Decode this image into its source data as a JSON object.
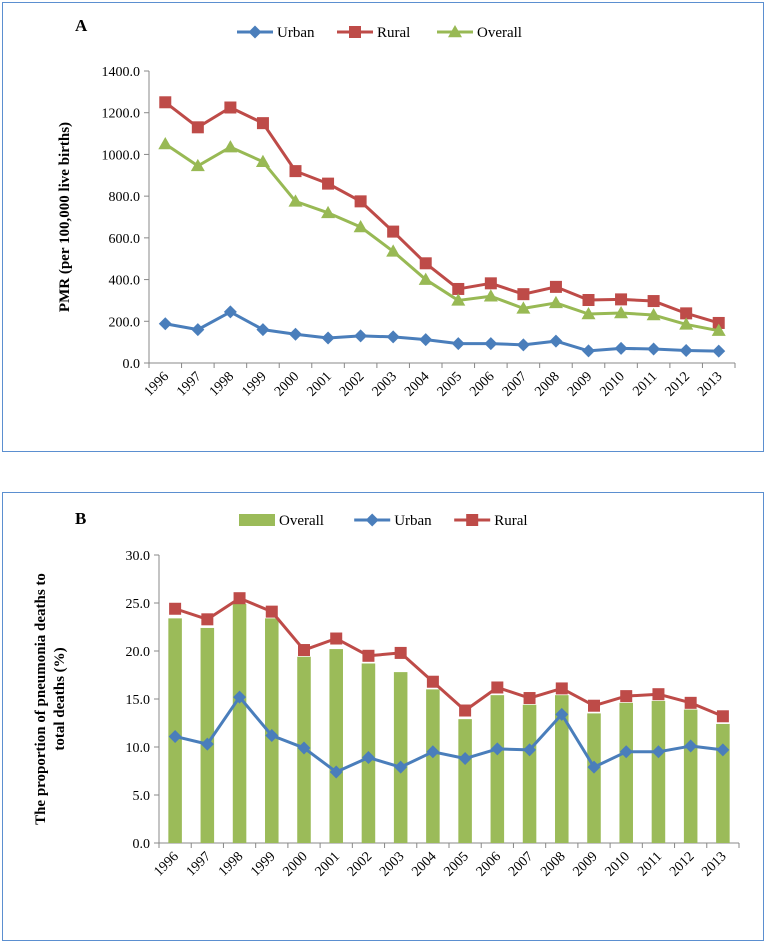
{
  "chart_data": [
    {
      "type": "line",
      "panel_label": "A",
      "ylabel": "PMR (per 100,000 live births)",
      "xlabel": "",
      "ylim": [
        0,
        1400
      ],
      "yticks": [
        "0.0",
        "200.0",
        "400.0",
        "600.0",
        "800.0",
        "1000.0",
        "1200.0",
        "1400.0"
      ],
      "categories": [
        "1996",
        "1997",
        "1998",
        "1999",
        "2000",
        "2001",
        "2002",
        "2003",
        "2004",
        "2005",
        "2006",
        "2007",
        "2008",
        "2009",
        "2010",
        "2011",
        "2012",
        "2013"
      ],
      "legend_position": "top",
      "series": [
        {
          "name": "Urban",
          "marker": "diamond",
          "color": "#4a7ebb",
          "values": [
            188,
            160,
            245,
            160,
            138,
            120,
            130,
            125,
            112,
            93,
            93,
            87,
            105,
            58,
            70,
            67,
            60,
            57
          ]
        },
        {
          "name": "Rural",
          "marker": "square",
          "color": "#be4b48",
          "values": [
            1250,
            1130,
            1225,
            1150,
            920,
            860,
            775,
            630,
            478,
            355,
            382,
            330,
            365,
            302,
            305,
            297,
            238,
            192
          ]
        },
        {
          "name": "Overall",
          "marker": "triangle",
          "color": "#98b954",
          "values": [
            1050,
            945,
            1035,
            965,
            775,
            720,
            652,
            535,
            400,
            300,
            320,
            262,
            288,
            235,
            240,
            230,
            185,
            155
          ]
        }
      ]
    },
    {
      "type": "bar",
      "panel_label": "B",
      "ylabel": "The proportion of pneumonia deaths to total deaths (%)",
      "xlabel": "",
      "ylim": [
        0,
        30
      ],
      "yticks": [
        "0.0",
        "5.0",
        "10.0",
        "15.0",
        "20.0",
        "25.0",
        "30.0"
      ],
      "categories": [
        "1996",
        "1997",
        "1998",
        "1999",
        "2000",
        "2001",
        "2002",
        "2003",
        "2004",
        "2005",
        "2006",
        "2007",
        "2008",
        "2009",
        "2010",
        "2011",
        "2012",
        "2013"
      ],
      "legend_position": "top",
      "series": [
        {
          "name": "Overall",
          "kind": "bar",
          "color": "#9bbb59",
          "values": [
            23.4,
            22.4,
            24.9,
            23.4,
            19.4,
            20.2,
            18.7,
            17.8,
            16.0,
            12.9,
            15.4,
            14.4,
            15.4,
            13.5,
            14.6,
            14.8,
            13.9,
            12.4
          ]
        },
        {
          "name": "Urban",
          "kind": "line",
          "marker": "diamond",
          "color": "#4a7ebb",
          "values": [
            11.1,
            10.3,
            15.2,
            11.2,
            9.9,
            7.4,
            8.9,
            7.9,
            9.5,
            8.8,
            9.8,
            9.7,
            13.4,
            7.9,
            9.5,
            9.5,
            10.1,
            9.7
          ]
        },
        {
          "name": "Rural",
          "kind": "line",
          "marker": "square",
          "color": "#be4b48",
          "values": [
            24.4,
            23.3,
            25.5,
            24.1,
            20.1,
            21.3,
            19.5,
            19.8,
            16.8,
            13.8,
            16.2,
            15.1,
            16.1,
            14.3,
            15.3,
            15.5,
            14.6,
            13.2
          ]
        }
      ]
    }
  ]
}
